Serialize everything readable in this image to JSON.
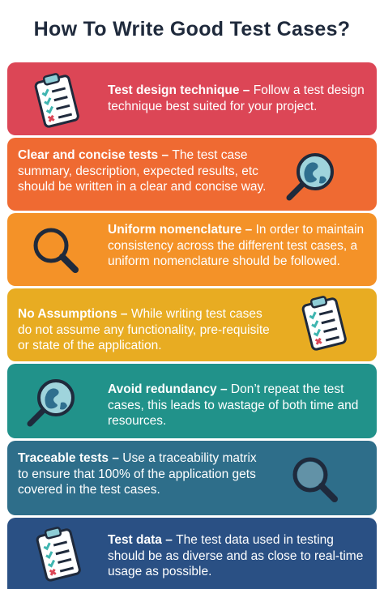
{
  "title": "How To Write Good Test Cases?",
  "cards": [
    {
      "heading": "Test design technique",
      "body": "Follow a test design technique best suited for your project.",
      "icon": "clipboard-checklist-icon",
      "color": "#dc4656"
    },
    {
      "heading": "Clear and concise tests",
      "body": "The test case summary, description, expected results, etc should be written in a clear and concise way.",
      "icon": "magnifier-globe-icon",
      "color": "#ef6a32"
    },
    {
      "heading": "Uniform nomenclature",
      "body": "In order to maintain consistency across the different test cases, a uniform nomenclature should be followed.",
      "icon": "magnifier-icon",
      "color": "#f49228"
    },
    {
      "heading": "No Assumptions",
      "body": "While writing test cases do not assume any functionality, pre-requisite or state of the application.",
      "icon": "clipboard-checklist-icon",
      "color": "#e8ac22"
    },
    {
      "heading": "Avoid redundancy",
      "body": "Don’t repeat the test cases, this leads to wastage of both time and resources.",
      "icon": "magnifier-globe-icon",
      "color": "#21928a"
    },
    {
      "heading": "Traceable tests",
      "body": "Use a traceability matrix to ensure that 100% of the application gets covered in the test cases.",
      "icon": "magnifier-icon",
      "color": "#2e6e8a"
    },
    {
      "heading": "Test data",
      "body": "The test data used in testing should be as diverse and as close to real-time usage as possible.",
      "icon": "clipboard-checklist-icon",
      "color": "#2a5084"
    }
  ],
  "separator": " – "
}
